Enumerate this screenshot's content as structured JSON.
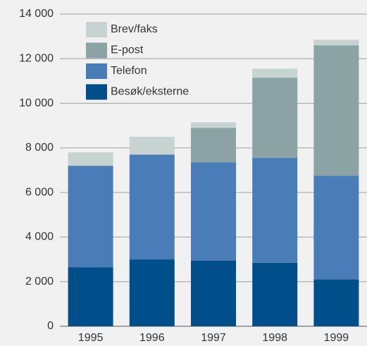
{
  "chart_data": {
    "type": "stacked_bar",
    "categories": [
      "1995",
      "1996",
      "1997",
      "1998",
      "1999"
    ],
    "series": [
      {
        "name": "Besøk/eksterne",
        "color": "#004f8a",
        "values": [
          2650,
          3000,
          2950,
          2850,
          2100
        ]
      },
      {
        "name": "Telefon",
        "color": "#4a7db8",
        "values": [
          4550,
          4700,
          4400,
          4700,
          4650
        ]
      },
      {
        "name": "E-post",
        "color": "#8ba3a4",
        "values": [
          0,
          0,
          1550,
          3600,
          5850
        ]
      },
      {
        "name": "Brev/faks",
        "color": "#c6d3d1",
        "values": [
          600,
          800,
          250,
          400,
          250
        ]
      }
    ],
    "ylim": [
      0,
      14000
    ],
    "yticks": [
      0,
      {
        "value": 2000,
        "label": "2 000"
      },
      {
        "value": 4000,
        "label": "4 000"
      },
      {
        "value": 6000,
        "label": "6 000"
      },
      {
        "value": 8000,
        "label": "8 000"
      },
      {
        "value": 10000,
        "label": "10 000"
      },
      {
        "value": 12000,
        "label": "12 000"
      },
      {
        "value": 14000,
        "label": "14 000"
      }
    ],
    "grid": true,
    "legend": "top-left"
  }
}
